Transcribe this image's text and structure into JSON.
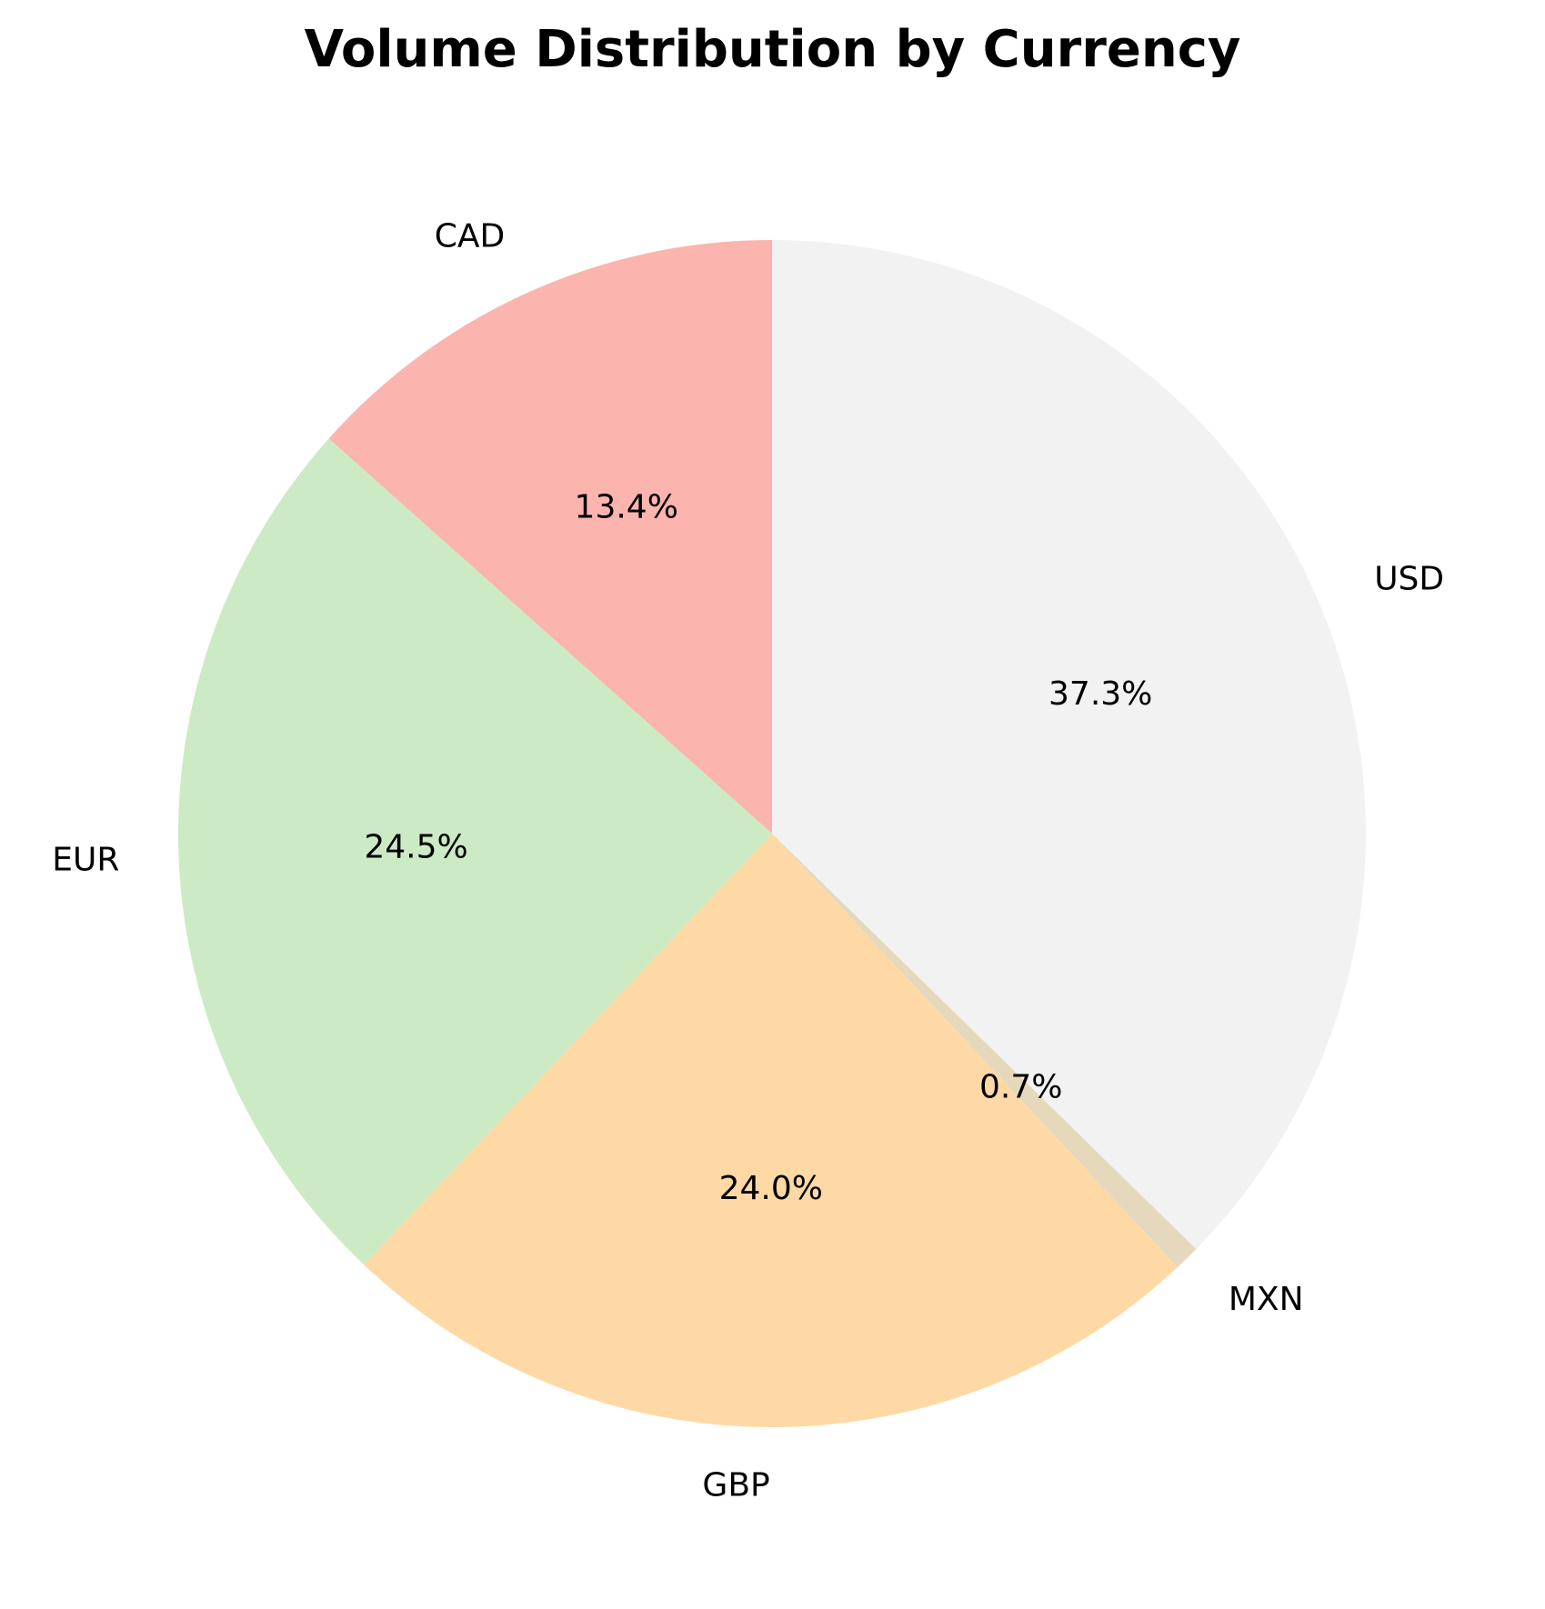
{
  "chart_data": {
    "type": "pie",
    "title": "Volume Distribution by Currency",
    "start_angle_deg": 90,
    "direction": "counterclockwise",
    "slices": [
      {
        "label": "CAD",
        "value": 13.4,
        "pct_label": "13.4%",
        "color": "#FBB4AE"
      },
      {
        "label": "EUR",
        "value": 24.5,
        "pct_label": "24.5%",
        "color": "#CCEBC5"
      },
      {
        "label": "GBP",
        "value": 24.0,
        "pct_label": "24.0%",
        "color": "#FED9A6"
      },
      {
        "label": "MXN",
        "value": 0.7,
        "pct_label": "0.7%",
        "color": "#E5D8BD"
      },
      {
        "label": "USD",
        "value": 37.3,
        "pct_label": "37.3%",
        "color": "#F2F2F2"
      }
    ]
  }
}
